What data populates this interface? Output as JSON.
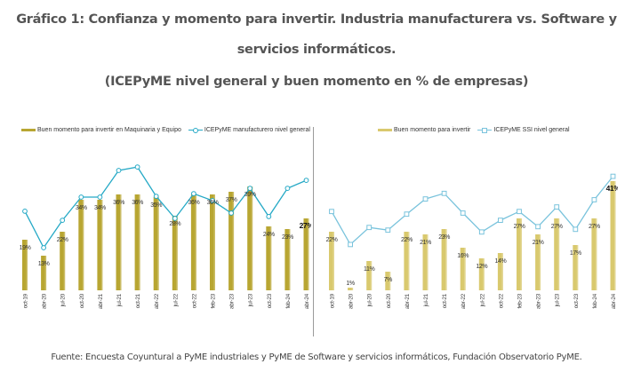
{
  "title_line1": "Gráfico 1: Confianza y momento para invertir. Industria manufacturera vs. Software y",
  "title_line2": "servicios informáticos.",
  "subtitle": "(ICEPyME nivel general y buen momento en % de empresas)",
  "footer": "Fuente: Encuesta Coyuntural a PyME industriales y PyME de Software y servicios informáticos, Fundación Observatorio PyME.",
  "colors": {
    "manufacturing_bar": "#b8a632",
    "manufacturing_line": "#25a9c6",
    "software_bar": "#d9c96e",
    "software_line": "#79c3dc"
  },
  "chart_data": [
    {
      "type": "bar+line",
      "panel": "left",
      "categories": [
        "oct-19",
        "abr-20",
        "jul-20",
        "oct-20",
        "abr-21",
        "jul-21",
        "oct-21",
        "abr-22",
        "jul-22",
        "oct-22",
        "feb-23",
        "abr-23",
        "jul-23",
        "oct-23",
        "feb-24",
        "abr-24"
      ],
      "series": [
        {
          "name": "Buen momento para invertir en Maquinaria y Equipo",
          "kind": "bar",
          "values": [
            19,
            13,
            22,
            34,
            34,
            36,
            36,
            35,
            28,
            36,
            36,
            37,
            39,
            24,
            23,
            27
          ],
          "labels": [
            "19%",
            "13%",
            "22%",
            "34%",
            "34%",
            "36%",
            "36%",
            "35%",
            "28%",
            "36%",
            "36%",
            "37%",
            "39%",
            "24%",
            "23%",
            "27%"
          ],
          "highlight_last_label": true
        },
        {
          "name": "ICEPyME manufacturero nivel general",
          "kind": "line",
          "marker": "circle",
          "values_relative_estimate": [
            29.7,
            16.0,
            26.3,
            35.0,
            35.0,
            45.0,
            46.3,
            35.3,
            27.0,
            36.3,
            33.7,
            29.0,
            38.3,
            27.7,
            38.3,
            41.3
          ]
        }
      ],
      "ylim": [
        0,
        55
      ],
      "axis_visible": false,
      "grid": false,
      "legend": "top-left"
    },
    {
      "type": "bar+line",
      "panel": "right",
      "categories": [
        "oct-19",
        "abr-20",
        "jul-20",
        "oct-20",
        "abr-21",
        "jul-21",
        "oct-21",
        "abr-22",
        "jul-22",
        "oct-22",
        "feb-23",
        "abr-23",
        "jul-23",
        "oct-23",
        "feb-24",
        "abr-24"
      ],
      "series": [
        {
          "name": "Buen momento para invertir",
          "kind": "bar",
          "values": [
            22,
            1,
            11,
            7,
            22,
            21,
            23,
            16,
            12,
            14,
            27,
            21,
            27,
            17,
            27,
            41
          ],
          "labels": [
            "22%",
            "1%",
            "11%",
            "7%",
            "22%",
            "21%",
            "23%",
            "16%",
            "12%",
            "14%",
            "27%",
            "21%",
            "27%",
            "17%",
            "27%",
            "41%"
          ],
          "highlight_last_label": true
        },
        {
          "name": "ICEPyME SSI nivel general",
          "kind": "line",
          "marker": "square",
          "values_relative_estimate": [
            29.6,
            17.2,
            23.6,
            22.6,
            28.6,
            34.3,
            36.4,
            29.0,
            21.9,
            26.3,
            29.6,
            23.9,
            31.3,
            22.9,
            34.0,
            42.8
          ]
        }
      ],
      "ylim": [
        0,
        55
      ],
      "axis_visible": false,
      "grid": false,
      "legend": "top-center"
    }
  ]
}
